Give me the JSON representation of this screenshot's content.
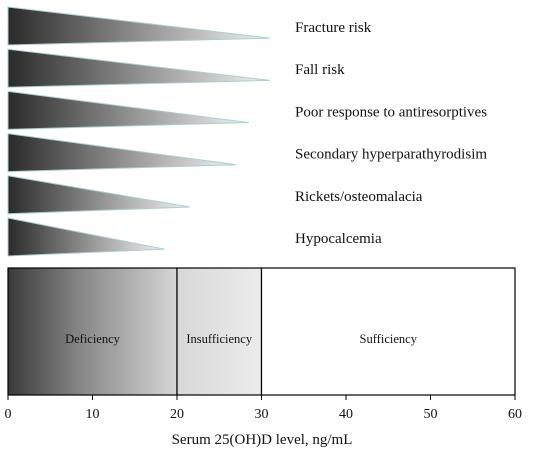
{
  "chart_data": {
    "type": "diagram",
    "xlabel": "Serum 25(OH)D level, ng/mL",
    "xlim": [
      0,
      60
    ],
    "ticks": [
      0,
      10,
      20,
      30,
      40,
      50,
      60
    ],
    "risks": [
      {
        "label": "Fracture risk",
        "extends_to": 31
      },
      {
        "label": "Fall risk",
        "extends_to": 31
      },
      {
        "label": "Poor response to antiresorptives",
        "extends_to": 28.5
      },
      {
        "label": "Secondary hyperparathyrodisim",
        "extends_to": 27
      },
      {
        "label": "Rickets/osteomalacia",
        "extends_to": 21.5
      },
      {
        "label": "Hypocalcemia",
        "extends_to": 18.5
      }
    ],
    "zones": [
      {
        "label": "Deficiency",
        "from": 0,
        "to": 20
      },
      {
        "label": "Insufficiency",
        "from": 20,
        "to": 30
      },
      {
        "label": "Sufficiency",
        "from": 30,
        "to": 60
      }
    ]
  }
}
